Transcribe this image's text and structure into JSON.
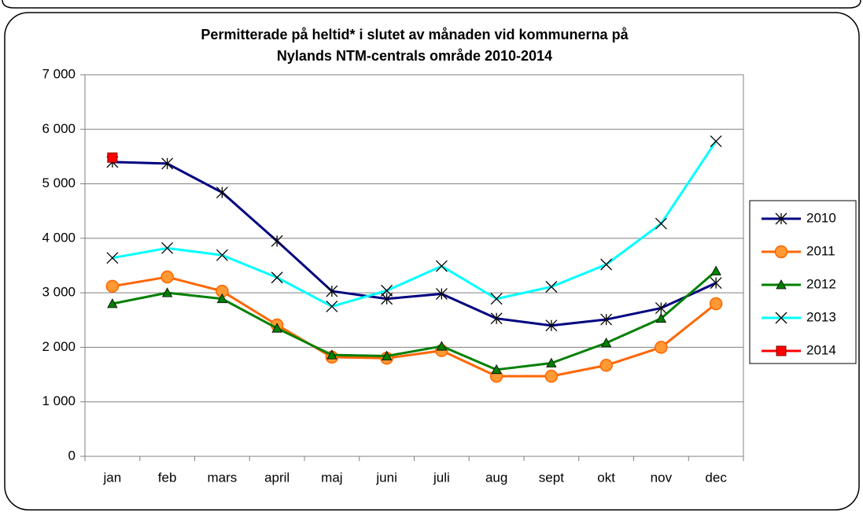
{
  "chart_data": {
    "type": "line",
    "title": [
      "Permitterade på heltid* i slutet av månaden vid kommunerna på",
      "Nylands NTM-centrals område 2010-2014"
    ],
    "categories": [
      "jan",
      "feb",
      "mars",
      "april",
      "maj",
      "juni",
      "juli",
      "aug",
      "sept",
      "okt",
      "nov",
      "dec"
    ],
    "series": [
      {
        "name": "2010",
        "color": "#000080",
        "marker": "star",
        "values": [
          5400,
          5370,
          4840,
          3950,
          3030,
          2890,
          2980,
          2530,
          2400,
          2510,
          2720,
          3180
        ]
      },
      {
        "name": "2011",
        "color": "#ff6600",
        "marker": "circle",
        "values": [
          3120,
          3290,
          3030,
          2410,
          1820,
          1800,
          1940,
          1470,
          1470,
          1670,
          2000,
          2800
        ]
      },
      {
        "name": "2012",
        "color": "#008000",
        "marker": "triangle",
        "values": [
          2800,
          3000,
          2890,
          2350,
          1860,
          1840,
          2020,
          1590,
          1710,
          2080,
          2530,
          3400
        ]
      },
      {
        "name": "2013",
        "color": "#00ffff",
        "marker": "x",
        "values": [
          3640,
          3820,
          3690,
          3280,
          2750,
          3040,
          3490,
          2890,
          3110,
          3520,
          4270,
          5780
        ]
      },
      {
        "name": "2014",
        "color": "#ff0000",
        "marker": "square",
        "values": [
          5480,
          null,
          null,
          null,
          null,
          null,
          null,
          null,
          null,
          null,
          null,
          null
        ]
      }
    ],
    "ylim": [
      0,
      7000
    ],
    "yticks": [
      0,
      {
        "value": 1000,
        "label": "1 000"
      },
      {
        "value": 2000,
        "label": "2 000"
      },
      {
        "value": 3000,
        "label": "3 000"
      },
      {
        "value": 4000,
        "label": "4 000"
      },
      {
        "value": 5000,
        "label": "5 000"
      },
      {
        "value": 6000,
        "label": "6 000"
      },
      {
        "value": 7000,
        "label": "7 000"
      }
    ],
    "grid": true,
    "legend": "right"
  }
}
